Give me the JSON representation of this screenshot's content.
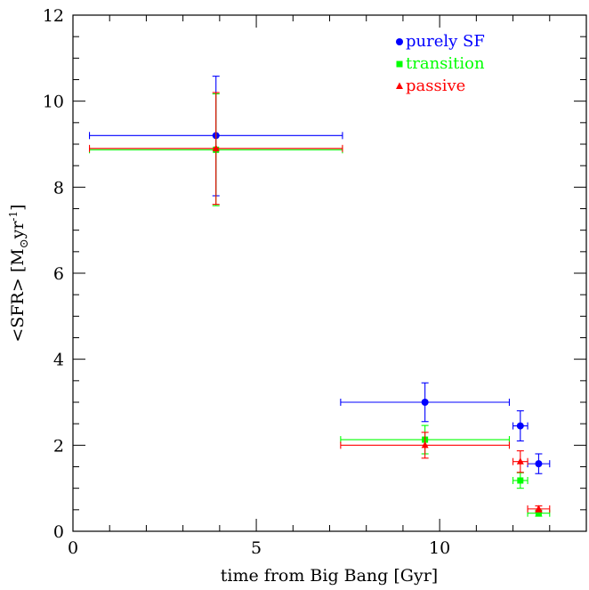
{
  "chart_data": {
    "type": "scatter",
    "xlabel": "time from Big Bang [Gyr]",
    "ylabel_main": "<SFR> [M",
    "ylabel_unit": "yr",
    "ylabel_exp": "-1",
    "ylabel_close": "]",
    "xlim": [
      0,
      14
    ],
    "ylim": [
      0,
      12
    ],
    "x_ticks": [
      0,
      5,
      10
    ],
    "y_ticks": [
      0,
      2,
      4,
      6,
      8,
      10,
      12
    ],
    "grid": false,
    "legend_position": "top-right",
    "series": [
      {
        "name": "purely SF",
        "color": "#0000ff",
        "marker": "circle",
        "points": [
          {
            "x": 3.9,
            "y": 9.2,
            "xerr_low": 3.45,
            "xerr_high": 3.45,
            "yerr_low": 1.4,
            "yerr_high": 1.38
          },
          {
            "x": 9.6,
            "y": 3.0,
            "xerr_low": 2.3,
            "xerr_high": 2.3,
            "yerr_low": 0.45,
            "yerr_high": 0.45
          },
          {
            "x": 12.2,
            "y": 2.45,
            "xerr_low": 0.2,
            "xerr_high": 0.2,
            "yerr_low": 0.35,
            "yerr_high": 0.35
          },
          {
            "x": 12.7,
            "y": 1.57,
            "xerr_low": 0.3,
            "xerr_high": 0.3,
            "yerr_low": 0.23,
            "yerr_high": 0.23
          }
        ]
      },
      {
        "name": "transition",
        "color": "#00ff00",
        "marker": "square",
        "points": [
          {
            "x": 3.9,
            "y": 8.87,
            "xerr_low": 3.45,
            "xerr_high": 3.45,
            "yerr_low": 1.3,
            "yerr_high": 1.3
          },
          {
            "x": 9.6,
            "y": 2.13,
            "xerr_low": 2.3,
            "xerr_high": 2.3,
            "yerr_low": 0.33,
            "yerr_high": 0.33
          },
          {
            "x": 12.2,
            "y": 1.18,
            "xerr_low": 0.2,
            "xerr_high": 0.2,
            "yerr_low": 0.18,
            "yerr_high": 0.18
          },
          {
            "x": 12.7,
            "y": 0.42,
            "xerr_low": 0.3,
            "xerr_high": 0.3,
            "yerr_low": 0.07,
            "yerr_high": 0.07
          }
        ]
      },
      {
        "name": "passive",
        "color": "#ff0000",
        "marker": "triangle",
        "points": [
          {
            "x": 3.9,
            "y": 8.9,
            "xerr_low": 3.45,
            "xerr_high": 3.45,
            "yerr_low": 1.3,
            "yerr_high": 1.3
          },
          {
            "x": 9.6,
            "y": 2.0,
            "xerr_low": 2.3,
            "xerr_high": 2.3,
            "yerr_low": 0.3,
            "yerr_high": 0.3
          },
          {
            "x": 12.2,
            "y": 1.62,
            "xerr_low": 0.2,
            "xerr_high": 0.2,
            "yerr_low": 0.25,
            "yerr_high": 0.25
          },
          {
            "x": 12.7,
            "y": 0.52,
            "xerr_low": 0.3,
            "xerr_high": 0.3,
            "yerr_low": 0.07,
            "yerr_high": 0.07
          }
        ]
      }
    ]
  }
}
